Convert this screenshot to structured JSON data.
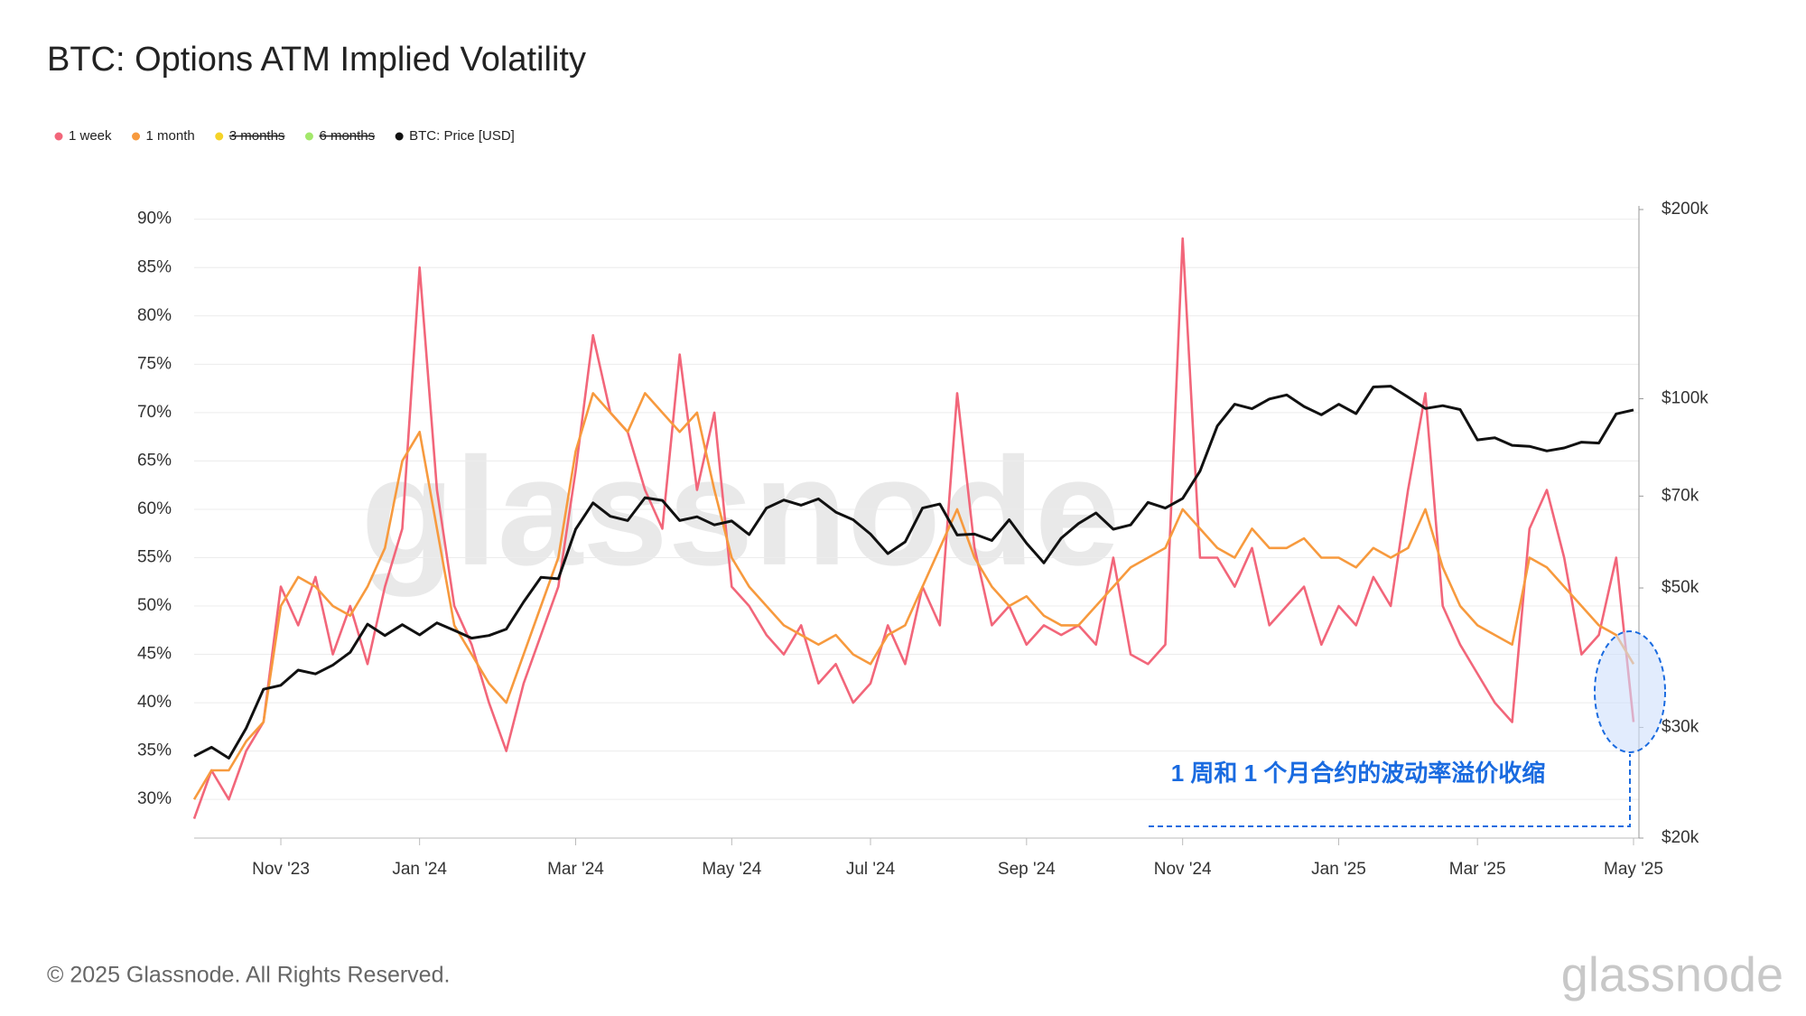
{
  "chart_data": {
    "type": "line",
    "title": "BTC: Options ATM Implied Volatility",
    "footer": "© 2025 Glassnode. All Rights Reserved.",
    "watermark": "glassnode",
    "annotation": "1 周和 1 个月合约的波动率溢价收缩",
    "categories": [
      null,
      null,
      null,
      null,
      null,
      "Nov '23",
      null,
      null,
      null,
      null,
      null,
      null,
      null,
      "Jan '24",
      null,
      null,
      null,
      null,
      null,
      null,
      null,
      null,
      "Mar '24",
      null,
      null,
      null,
      null,
      null,
      null,
      null,
      null,
      "May '24",
      null,
      null,
      null,
      null,
      null,
      null,
      null,
      "Jul '24",
      null,
      null,
      null,
      null,
      null,
      null,
      null,
      null,
      "Sep '24",
      null,
      null,
      null,
      null,
      null,
      null,
      null,
      null,
      "Nov '24",
      null,
      null,
      null,
      null,
      null,
      null,
      null,
      null,
      "Jan '25",
      null,
      null,
      null,
      null,
      null,
      null,
      null,
      "Mar '25",
      null,
      null,
      null,
      null,
      null,
      null,
      null,
      null,
      "May '25"
    ],
    "series": [
      {
        "name": "1 week",
        "color": "#f2667a",
        "values": [
          28,
          33,
          30,
          35,
          38,
          52,
          48,
          53,
          45,
          50,
          44,
          52,
          58,
          85,
          62,
          50,
          46,
          40,
          35,
          42,
          47,
          52,
          64,
          78,
          70,
          68,
          62,
          58,
          76,
          62,
          70,
          52,
          50,
          47,
          45,
          48,
          42,
          44,
          40,
          42,
          48,
          44,
          52,
          48,
          72,
          56,
          48,
          50,
          46,
          48,
          47,
          48,
          46,
          55,
          45,
          44,
          46,
          88,
          55,
          55,
          52,
          56,
          48,
          50,
          52,
          46,
          50,
          48,
          53,
          50,
          62,
          72,
          50,
          46,
          43,
          40,
          38,
          58,
          62,
          55,
          45,
          47,
          55,
          38
        ]
      },
      {
        "name": "1 month",
        "color": "#f79a3e",
        "values": [
          30,
          33,
          33,
          36,
          38,
          50,
          53,
          52,
          50,
          49,
          52,
          56,
          65,
          68,
          58,
          48,
          45,
          42,
          40,
          45,
          50,
          55,
          66,
          72,
          70,
          68,
          72,
          70,
          68,
          70,
          62,
          55,
          52,
          50,
          48,
          47,
          46,
          47,
          45,
          44,
          47,
          48,
          52,
          56,
          60,
          55,
          52,
          50,
          51,
          49,
          48,
          48,
          50,
          52,
          54,
          55,
          56,
          60,
          58,
          56,
          55,
          58,
          56,
          56,
          57,
          55,
          55,
          54,
          56,
          55,
          56,
          60,
          54,
          50,
          48,
          47,
          46,
          55,
          54,
          52,
          50,
          48,
          47,
          44
        ]
      },
      {
        "name": "3 months",
        "color": "#f5d328",
        "hidden": true
      },
      {
        "name": "6 months",
        "color": "#a3e86b",
        "hidden": true
      },
      {
        "name": "BTC: Price [USD]",
        "color": "#111111",
        "axis": "y2",
        "values": [
          27000,
          27900,
          26800,
          29900,
          34500,
          35000,
          37000,
          36500,
          37700,
          39500,
          43800,
          42000,
          43700,
          42100,
          44000,
          42800,
          41600,
          42000,
          43000,
          47500,
          52000,
          51700,
          62000,
          68300,
          65000,
          64000,
          69600,
          68900,
          64000,
          64900,
          63000,
          63900,
          60800,
          67000,
          69000,
          67700,
          69300,
          66000,
          64200,
          60900,
          56700,
          59200,
          67000,
          68000,
          60700,
          60900,
          59500,
          64200,
          58900,
          54800,
          60000,
          63300,
          65800,
          62000,
          63000,
          68400,
          67000,
          69400,
          76700,
          90500,
          98000,
          96400,
          99900,
          101400,
          97200,
          94300,
          98000,
          94700,
          104400,
          104700,
          100600,
          96500,
          97500,
          96100,
          86000,
          86700,
          84300,
          84000,
          82600,
          83500,
          85300,
          85000,
          94600,
          96000
        ]
      }
    ],
    "ylim": [
      26,
      91
    ],
    "yticks": [
      {
        "value": 30,
        "label": "30%"
      },
      {
        "value": 35,
        "label": "35%"
      },
      {
        "value": 40,
        "label": "40%"
      },
      {
        "value": 45,
        "label": "45%"
      },
      {
        "value": 50,
        "label": "50%"
      },
      {
        "value": 55,
        "label": "55%"
      },
      {
        "value": 60,
        "label": "60%"
      },
      {
        "value": 65,
        "label": "65%"
      },
      {
        "value": 70,
        "label": "70%"
      },
      {
        "value": 75,
        "label": "75%"
      },
      {
        "value": 80,
        "label": "80%"
      },
      {
        "value": 85,
        "label": "85%"
      },
      {
        "value": 90,
        "label": "90%"
      }
    ],
    "y2lim": [
      20000,
      200000
    ],
    "y2log": true,
    "y2ticks": [
      {
        "value": 20000,
        "label": "$20k"
      },
      {
        "value": 30000,
        "label": "$30k"
      },
      {
        "value": 50000,
        "label": "$50k"
      },
      {
        "value": 70000,
        "label": "$70k"
      },
      {
        "value": 100000,
        "label": "$100k"
      },
      {
        "value": 200000,
        "label": "$200k"
      }
    ],
    "grid": true
  }
}
